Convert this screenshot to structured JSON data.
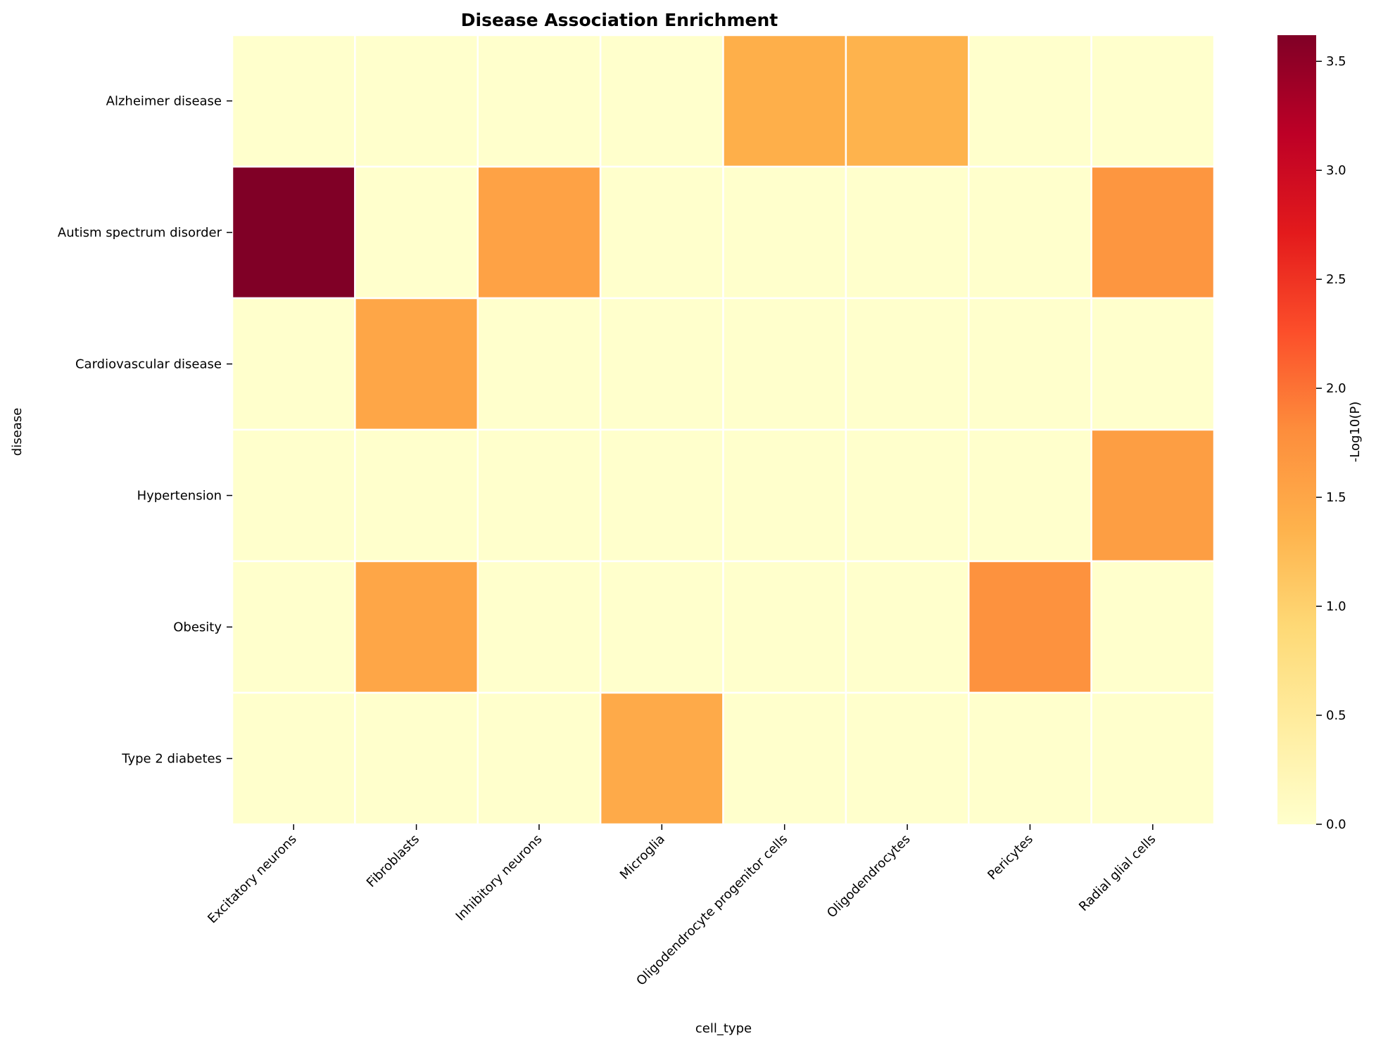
{
  "chart_data": {
    "type": "heatmap",
    "title": "Disease Association Enrichment",
    "xlabel": "cell_type",
    "ylabel": "disease",
    "x": [
      "Excitatory neurons",
      "Fibroblasts",
      "Inhibitory neurons",
      "Microglia",
      "Oligodendrocyte progenitor cells",
      "Oligodendrocytes",
      "Pericytes",
      "Radial glial cells"
    ],
    "y": [
      "Alzheimer disease",
      "Autism spectrum disorder",
      "Cardiovascular disease",
      "Hypertension",
      "Obesity",
      "Type 2 diabetes"
    ],
    "values": [
      [
        0,
        0,
        0,
        0,
        1.4,
        1.35,
        0,
        0
      ],
      [
        3.62,
        0,
        1.55,
        0,
        0,
        0,
        0,
        1.7
      ],
      [
        0,
        1.5,
        0,
        0,
        0,
        0,
        0,
        0
      ],
      [
        0,
        0,
        0,
        0,
        0,
        0,
        0,
        1.6
      ],
      [
        0,
        1.5,
        0,
        0,
        0,
        0,
        1.75,
        0
      ],
      [
        0,
        0,
        0,
        1.45,
        0,
        0,
        0,
        0
      ]
    ],
    "colorbar": {
      "label": "-Log10(P)",
      "range": [
        0,
        3.62
      ],
      "ticks": [
        0.0,
        0.5,
        1.0,
        1.5,
        2.0,
        2.5,
        3.0,
        3.5
      ],
      "tick_labels": [
        "0.0",
        "0.5",
        "1.0",
        "1.5",
        "2.0",
        "2.5",
        "3.0",
        "3.5"
      ],
      "colormap": "YlOrRd",
      "colormap_stops": [
        "#ffffcc",
        "#ffeda0",
        "#fed976",
        "#feb24c",
        "#fd8d3c",
        "#fc4e2a",
        "#e31a1c",
        "#bd0026",
        "#800026"
      ]
    },
    "cell_border_color": "#ffffff",
    "grid": false
  }
}
